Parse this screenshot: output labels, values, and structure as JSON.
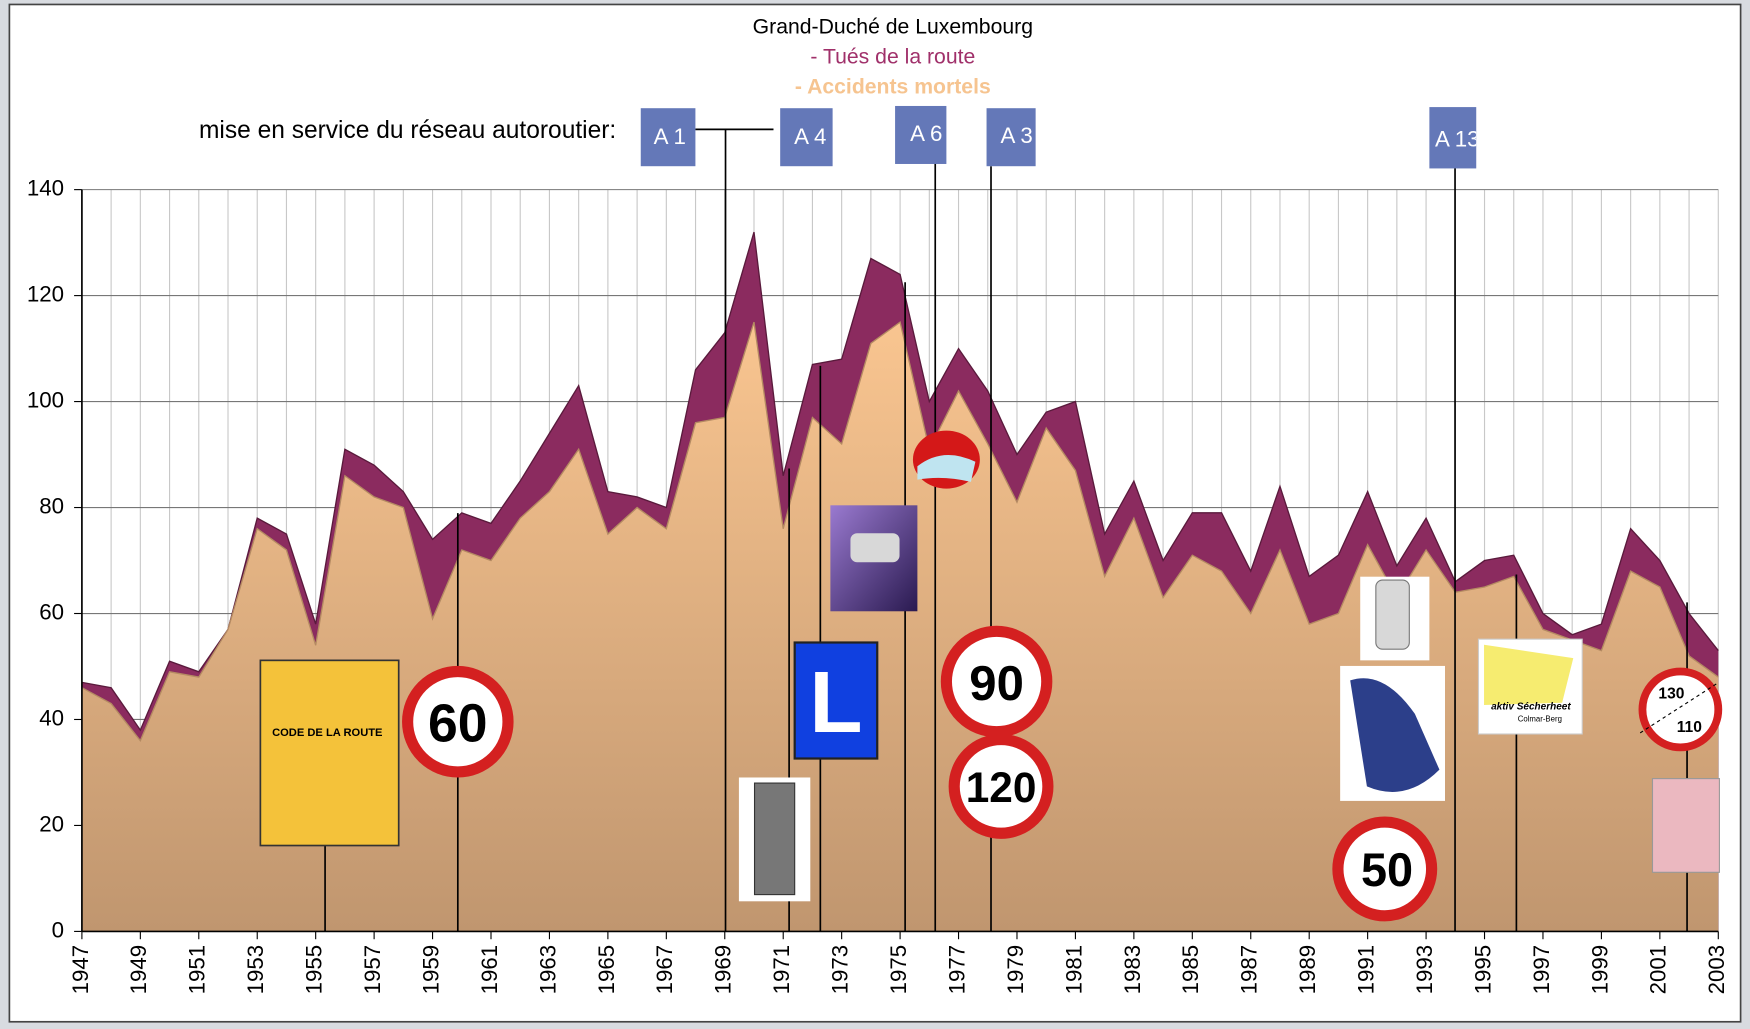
{
  "chart_data": {
    "type": "area",
    "title": "Grand-Duché de Luxembourg",
    "x": [
      1947,
      1948,
      1949,
      1950,
      1951,
      1952,
      1953,
      1954,
      1955,
      1956,
      1957,
      1958,
      1959,
      1960,
      1961,
      1962,
      1963,
      1964,
      1965,
      1966,
      1967,
      1968,
      1969,
      1970,
      1971,
      1972,
      1973,
      1974,
      1975,
      1976,
      1977,
      1978,
      1979,
      1980,
      1981,
      1982,
      1983,
      1984,
      1985,
      1986,
      1987,
      1988,
      1989,
      1990,
      1991,
      1992,
      1993,
      1994,
      1995,
      1996,
      1997,
      1998,
      1999,
      2000,
      2001,
      2002,
      2003
    ],
    "series": [
      {
        "name": "- Tués de la route",
        "color": "#8b2b5f",
        "values": [
          47,
          46,
          38,
          51,
          49,
          57,
          78,
          75,
          58,
          91,
          88,
          83,
          74,
          79,
          77,
          85,
          94,
          103,
          83,
          82,
          80,
          106,
          113,
          132,
          86,
          107,
          108,
          127,
          124,
          100,
          110,
          102,
          90,
          98,
          100,
          75,
          85,
          70,
          79,
          79,
          68,
          84,
          67,
          71,
          83,
          69,
          78,
          66,
          70,
          71,
          60,
          56,
          58,
          76,
          70,
          60,
          53
        ]
      },
      {
        "name": "- Accidents mortels",
        "color": "#f6c490",
        "values": [
          46,
          43,
          36,
          49,
          48,
          57,
          76,
          72,
          54,
          86,
          82,
          80,
          59,
          72,
          70,
          78,
          83,
          91,
          75,
          80,
          76,
          96,
          97,
          115,
          76,
          97,
          92,
          111,
          115,
          91,
          102,
          92,
          81,
          95,
          87,
          67,
          78,
          63,
          71,
          68,
          60,
          72,
          58,
          60,
          73,
          63,
          72,
          64,
          65,
          67,
          57,
          55,
          53,
          68,
          65,
          52,
          48
        ]
      }
    ],
    "xlim": [
      1947,
      2003
    ],
    "xticks": [
      1947,
      1949,
      1951,
      1953,
      1955,
      1957,
      1959,
      1961,
      1963,
      1965,
      1967,
      1969,
      1971,
      1973,
      1975,
      1977,
      1979,
      1981,
      1983,
      1985,
      1987,
      1989,
      1991,
      1993,
      1995,
      1997,
      1999,
      2001,
      2003
    ],
    "ylim": [
      0,
      140
    ],
    "yticks": [
      0,
      20,
      40,
      60,
      80,
      100,
      120,
      140
    ],
    "grid": true,
    "annotations": {
      "highways_intro": "mise en service du réseau autoroutier:",
      "highways": [
        "A 1",
        "A 4",
        "A 6",
        "A 3",
        "A 13"
      ],
      "code_book": "CODE DE LA ROUTE",
      "speed_signs": [
        "60",
        "90",
        "120",
        "50",
        "130",
        "110"
      ],
      "learner_sign": "L",
      "aktiv": "aktiv Sécherheet",
      "aktiv_place": "Colmar-Berg"
    }
  }
}
